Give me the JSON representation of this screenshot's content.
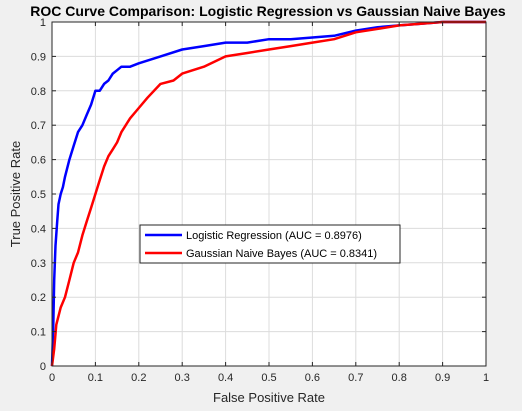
{
  "chart_data": {
    "type": "line",
    "title": "ROC Curve Comparison: Logistic Regression vs Gaussian Naive Bayes",
    "xlabel": "False Positive Rate",
    "ylabel": "True Positive Rate",
    "xlim": [
      0,
      1
    ],
    "ylim": [
      0,
      1
    ],
    "xticks": [
      "0",
      "0.1",
      "0.2",
      "0.3",
      "0.4",
      "0.5",
      "0.6",
      "0.7",
      "0.8",
      "0.9",
      "1"
    ],
    "yticks": [
      "0",
      "0.1",
      "0.2",
      "0.3",
      "0.4",
      "0.5",
      "0.6",
      "0.7",
      "0.8",
      "0.9",
      "1"
    ],
    "grid": true,
    "legend_position": "center",
    "series": [
      {
        "name": "Logistic Regression (AUC = 0.8976)",
        "color": "#0000ff",
        "x": [
          0,
          0.003,
          0.005,
          0.008,
          0.012,
          0.015,
          0.02,
          0.025,
          0.03,
          0.04,
          0.05,
          0.06,
          0.07,
          0.08,
          0.09,
          0.1,
          0.11,
          0.12,
          0.13,
          0.14,
          0.15,
          0.16,
          0.17,
          0.18,
          0.2,
          0.25,
          0.3,
          0.35,
          0.4,
          0.45,
          0.5,
          0.55,
          0.6,
          0.65,
          0.7,
          0.75,
          0.8,
          0.85,
          0.9,
          0.95,
          1
        ],
        "y": [
          0,
          0.12,
          0.25,
          0.35,
          0.42,
          0.47,
          0.5,
          0.52,
          0.55,
          0.6,
          0.64,
          0.68,
          0.7,
          0.73,
          0.76,
          0.8,
          0.8,
          0.82,
          0.83,
          0.85,
          0.86,
          0.87,
          0.87,
          0.87,
          0.88,
          0.9,
          0.92,
          0.93,
          0.94,
          0.94,
          0.95,
          0.95,
          0.955,
          0.96,
          0.975,
          0.985,
          0.99,
          0.995,
          1,
          1,
          1
        ]
      },
      {
        "name": "Gaussian Naive Bayes (AUC = 0.8341)",
        "color": "#ff0000",
        "x": [
          0,
          0.005,
          0.01,
          0.02,
          0.03,
          0.04,
          0.05,
          0.06,
          0.07,
          0.08,
          0.09,
          0.1,
          0.11,
          0.12,
          0.13,
          0.14,
          0.15,
          0.16,
          0.18,
          0.2,
          0.22,
          0.25,
          0.28,
          0.3,
          0.35,
          0.4,
          0.45,
          0.5,
          0.55,
          0.6,
          0.65,
          0.7,
          0.75,
          0.8,
          0.85,
          0.9,
          0.95,
          1
        ],
        "y": [
          0,
          0.05,
          0.12,
          0.17,
          0.2,
          0.25,
          0.3,
          0.33,
          0.38,
          0.42,
          0.46,
          0.5,
          0.54,
          0.58,
          0.61,
          0.63,
          0.65,
          0.68,
          0.72,
          0.75,
          0.78,
          0.82,
          0.83,
          0.85,
          0.87,
          0.9,
          0.91,
          0.92,
          0.93,
          0.94,
          0.95,
          0.97,
          0.98,
          0.99,
          0.995,
          1,
          1,
          1
        ]
      }
    ]
  }
}
